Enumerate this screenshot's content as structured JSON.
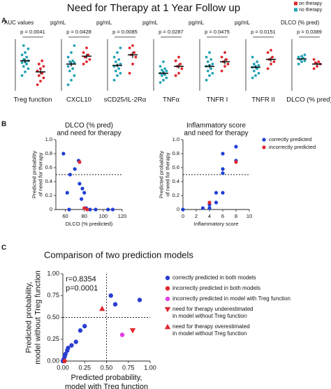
{
  "chart_data": [
    {
      "type": "strip",
      "panel_label": "A",
      "title": "Need for Therapy at 1 Year Follow up",
      "groups": [
        {
          "name": "on therapy",
          "color": "#e0282e"
        },
        {
          "name": "no therapy",
          "color": "#23a3b6"
        }
      ],
      "plots": [
        {
          "unit": "AUC values",
          "p_value": "p = 0.0041",
          "label": "Treg function",
          "ylim": [
            0,
            1
          ],
          "values": [
            [
              0.1,
              0.18,
              0.25,
              0.3,
              0.35,
              0.4,
              0.45,
              0.5,
              0.55,
              0.62
            ],
            [
              0.3,
              0.38,
              0.45,
              0.5,
              0.55,
              0.58,
              0.6,
              0.62,
              0.65,
              0.7,
              0.75,
              0.8,
              0.88,
              0.95
            ]
          ],
          "means": [
            0.38,
            0.62
          ],
          "errors": [
            0.05,
            0.05
          ]
        },
        {
          "unit": "pg/mL",
          "p_value": "p = 0.0428",
          "label": "CXCL10",
          "ylim": [
            0,
            1
          ],
          "values": [
            [
              0.55,
              0.6,
              0.65,
              0.7,
              0.75,
              0.8,
              0.9
            ],
            [
              0.1,
              0.2,
              0.3,
              0.4,
              0.45,
              0.5,
              0.55,
              0.58,
              0.6,
              0.62,
              0.7,
              0.8,
              0.95
            ]
          ],
          "means": [
            0.72,
            0.55
          ],
          "errors": [
            0.05,
            0.05
          ]
        },
        {
          "unit": "pg/mL",
          "p_value": "p = 0.0085",
          "label": "sCD25/IL-2Rα",
          "ylim": [
            0,
            1
          ],
          "values": [
            [
              0.35,
              0.55,
              0.7,
              0.75,
              0.8,
              0.9,
              0.95
            ],
            [
              0.2,
              0.3,
              0.35,
              0.4,
              0.45,
              0.5,
              0.52,
              0.55,
              0.6,
              0.65,
              0.7,
              0.8,
              0.9
            ]
          ],
          "means": [
            0.75,
            0.52
          ],
          "errors": [
            0.07,
            0.04
          ]
        },
        {
          "unit": "pg/mL",
          "p_value": "p = 0.0287",
          "label": "TNFα",
          "ylim": [
            0,
            1
          ],
          "values": [
            [
              0.3,
              0.35,
              0.45,
              0.5,
              0.55,
              0.62,
              0.7
            ],
            [
              0.15,
              0.2,
              0.25,
              0.3,
              0.32,
              0.35,
              0.38,
              0.4,
              0.42,
              0.45,
              0.5,
              0.6
            ]
          ],
          "means": [
            0.5,
            0.35
          ],
          "errors": [
            0.05,
            0.03
          ]
        },
        {
          "unit": "pg/mL",
          "p_value": "p = 0.0475",
          "label": "TNFR I",
          "ylim": [
            0,
            1
          ],
          "values": [
            [
              0.4,
              0.5,
              0.55,
              0.6,
              0.65,
              0.7,
              0.8
            ],
            [
              0.2,
              0.3,
              0.35,
              0.4,
              0.45,
              0.5,
              0.52,
              0.55,
              0.6,
              0.65,
              0.7,
              0.8
            ]
          ],
          "means": [
            0.6,
            0.5
          ],
          "errors": [
            0.06,
            0.04
          ]
        },
        {
          "unit": "pg/mL",
          "p_value": "p = 0.0151",
          "label": "TNFR II",
          "ylim": [
            0,
            1
          ],
          "values": [
            [
              0.45,
              0.55,
              0.6,
              0.65,
              0.7,
              0.8,
              0.85
            ],
            [
              0.25,
              0.3,
              0.35,
              0.4,
              0.45,
              0.48,
              0.5,
              0.52,
              0.55,
              0.6,
              0.7
            ]
          ],
          "means": [
            0.65,
            0.48
          ],
          "errors": [
            0.05,
            0.03
          ]
        },
        {
          "unit": "DLCO (% pred)",
          "p_value": "p = 0.0389",
          "label": "DLCO (% pred)",
          "ylim": [
            0,
            1
          ],
          "values": [
            [
              0.45,
              0.5,
              0.55,
              0.58,
              0.6,
              0.65
            ],
            [
              0.55,
              0.6,
              0.62,
              0.65,
              0.68,
              0.7,
              0.72,
              0.75
            ]
          ],
          "means": [
            0.55,
            0.66
          ],
          "errors": [
            0.03,
            0.02
          ]
        }
      ]
    },
    {
      "type": "scatter",
      "panel_label": "B",
      "title": [
        "DLCO (% pred)",
        "and need for therapy"
      ],
      "xlabel": [
        "DLCO (% predicted)"
      ],
      "ylabel": [
        "Predicted probability",
        "of need for therapy"
      ],
      "xlim": [
        50,
        120
      ],
      "ylim": [
        0,
        1
      ],
      "xticks": [
        60,
        80,
        100,
        120
      ],
      "yticks": [
        0,
        0.2,
        0.4,
        0.6,
        0.8,
        {
          "value": 1,
          "label": "1.0"
        }
      ],
      "hlines": [
        0.5
      ],
      "series": [
        {
          "color": "#1f3fd6",
          "marker": "circle",
          "x": [
            58,
            62,
            64,
            65,
            70,
            74,
            75,
            77,
            78,
            80,
            82,
            86,
            92,
            105,
            110
          ],
          "y": [
            0.8,
            0.24,
            0,
            0.5,
            0.58,
            0.7,
            0.37,
            0.15,
            0.3,
            0.24,
            0.02,
            0,
            0,
            0,
            0
          ]
        },
        {
          "color": "#e0282e",
          "marker": "circle",
          "x": [
            75,
            80,
            83
          ],
          "y": [
            0.68,
            0.02,
            0
          ]
        }
      ]
    },
    {
      "type": "scatter",
      "title": [
        "Inflammatory score",
        "and need for therapy"
      ],
      "xlabel": [
        "Inflammatory score"
      ],
      "ylabel": [
        "Predicted probability",
        "of need for therapy"
      ],
      "xlim": [
        0,
        10
      ],
      "ylim": [
        0,
        1
      ],
      "xticks": [
        0,
        2,
        4,
        6,
        8,
        10
      ],
      "yticks": [
        0,
        0.2,
        0.4,
        0.6,
        0.8,
        {
          "value": 1,
          "label": "1.0"
        }
      ],
      "hlines": [
        0.5
      ],
      "legend": "right",
      "series": [
        {
          "name": "correctly predicted",
          "color": "#1f3fd6",
          "marker": "circle",
          "x": [
            0,
            3,
            4,
            4,
            5,
            5,
            6,
            6,
            6,
            6,
            8,
            8
          ],
          "y": [
            0,
            0.02,
            0.02,
            0.07,
            0.1,
            0.24,
            0.24,
            0.52,
            0.58,
            0.8,
            0.7,
            0.9
          ]
        },
        {
          "name": "incorrectly predicted",
          "color": "#e0282e",
          "marker": "circle",
          "x": [
            4,
            8
          ],
          "y": [
            0.1,
            0.68
          ]
        }
      ]
    },
    {
      "type": "scatter",
      "panel_label": "C",
      "title": [
        "Comparison of two prediction models"
      ],
      "xlabel": [
        "Predicted probability,",
        "model with Treg function"
      ],
      "ylabel": [
        "Predicted probability,",
        "model without Treg function"
      ],
      "xlim": [
        0,
        1
      ],
      "ylim": [
        0,
        1
      ],
      "xticks": [
        {
          "value": 0,
          "label": "0.00"
        },
        {
          "value": 0.25,
          "label": "0.25"
        },
        {
          "value": 0.5,
          "label": "0.50"
        },
        {
          "value": 0.75,
          "label": "0.75"
        },
        {
          "value": 1,
          "label": "1.00"
        }
      ],
      "yticks": [
        {
          "value": 0,
          "label": "0.00"
        },
        {
          "value": 0.25,
          "label": "0.25"
        },
        {
          "value": 0.5,
          "label": "0.50"
        },
        {
          "value": 0.75,
          "label": "0.75"
        },
        {
          "value": 1,
          "label": "1.00"
        }
      ],
      "hlines": [
        0.5
      ],
      "vlines": [
        0.5
      ],
      "annotations": [
        "r=0.8354",
        "p=0.0001"
      ],
      "legend": "right",
      "series": [
        {
          "name": [
            "correctly predicted in both models"
          ],
          "color": "#2a3fd0",
          "marker": "circle",
          "x": [
            0,
            0.01,
            0.02,
            0.03,
            0.05,
            0.06,
            0.1,
            0.15,
            0.2,
            0.25,
            0.55,
            0.6,
            0.88
          ],
          "y": [
            0,
            0.02,
            0.05,
            0.08,
            0.12,
            0.15,
            0.18,
            0.22,
            0.35,
            0.4,
            0.75,
            0.65,
            0.7
          ]
        },
        {
          "name": [
            "incorrectly predicted in both models"
          ],
          "color": "#e0282e",
          "marker": "circle",
          "x": [
            0.02
          ],
          "y": [
            0
          ]
        },
        {
          "name": [
            "incorrectly predicted in model with Treg function"
          ],
          "color": "#e040e0",
          "marker": "circle",
          "x": [
            0.68
          ],
          "y": [
            0.3
          ]
        },
        {
          "name": [
            "need for therapy underestimated",
            "in model without Treg function"
          ],
          "color": "#e0282e",
          "marker": "triangle-down",
          "x": [
            0.8
          ],
          "y": [
            0.35
          ]
        },
        {
          "name": [
            "need for therapy overestimated",
            "in model without Treg function"
          ],
          "color": "#e0282e",
          "marker": "triangle-up",
          "x": [
            0.45
          ],
          "y": [
            0.6
          ]
        }
      ]
    }
  ]
}
